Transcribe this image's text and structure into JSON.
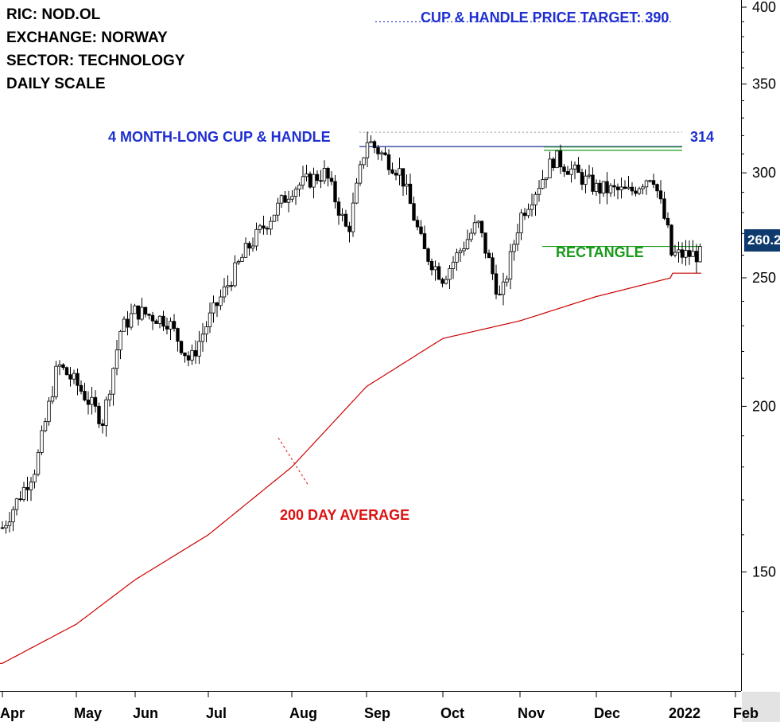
{
  "header": {
    "ric": "RIC: NOD.OL",
    "exchange": "EXCHANGE: NORWAY",
    "sector": "SECTOR: TECHNOLOGY",
    "scale": "DAILY SCALE"
  },
  "annotations": {
    "target": "CUP & HANDLE PRICE TARGET: 390",
    "pattern": "4 MONTH-LONG CUP & HANDLE",
    "resistance_value": "314",
    "rectangle": "RECTANGLE",
    "ma": "200 DAY AVERAGE"
  },
  "last_price_badge": "260.2",
  "colors": {
    "candles": "#000000",
    "moving_average": "#cc0000",
    "resistance": "#1f2f9a",
    "rectangle": "#1a9a1a",
    "target": "#1f2fd0",
    "badge": "#0e3a6e"
  },
  "chart_data": {
    "type": "candlestick",
    "y_scale": "log",
    "ylim": [
      122,
      405
    ],
    "y_ticks": [
      150,
      200,
      250,
      300,
      350,
      400
    ],
    "x_ticks": [
      "Apr",
      "May",
      "Jun",
      "Jul",
      "Aug",
      "Sep",
      "Oct",
      "Nov",
      "Dec",
      "2022",
      "Feb"
    ],
    "price_path": [
      [
        "Apr",
        162
      ],
      [
        "mid-Apr",
        180
      ],
      [
        "late-Apr",
        215
      ],
      [
        "May",
        208
      ],
      [
        "mid-May",
        195
      ],
      [
        "late-May",
        228
      ],
      [
        "Jun",
        236
      ],
      [
        "mid-Jun",
        232
      ],
      [
        "late-Jun",
        216
      ],
      [
        "Jul",
        232
      ],
      [
        "mid-Jul",
        262
      ],
      [
        "Aug",
        292
      ],
      [
        "mid-Aug",
        300
      ],
      [
        "late-Aug",
        270
      ],
      [
        "Sep",
        318
      ],
      [
        "mid-Sep",
        300
      ],
      [
        "late-Sep",
        262
      ],
      [
        "Oct",
        250
      ],
      [
        "mid-Oct",
        275
      ],
      [
        "late-Oct",
        240
      ],
      [
        "Nov",
        278
      ],
      [
        "mid-Nov",
        308
      ],
      [
        "Dec",
        292
      ],
      [
        "mid-Dec",
        290
      ],
      [
        "late-Dec",
        300
      ],
      [
        "2022",
        265
      ],
      [
        "mid-Jan",
        260.2
      ]
    ],
    "moving_average_200": [
      [
        "Apr",
        128
      ],
      [
        "May",
        137
      ],
      [
        "Jun",
        148
      ],
      [
        "Jul",
        160
      ],
      [
        "Aug",
        180
      ],
      [
        "Sep",
        207
      ],
      [
        "Oct",
        225
      ],
      [
        "Nov",
        232
      ],
      [
        "Dec",
        242
      ],
      [
        "2022",
        250
      ],
      [
        "mid-Jan",
        252
      ]
    ],
    "lines": {
      "cup_handle_resistance": 314,
      "price_target": 390,
      "rectangle_top": 312,
      "rectangle_bottom": 264
    },
    "last_price": 260.2
  }
}
